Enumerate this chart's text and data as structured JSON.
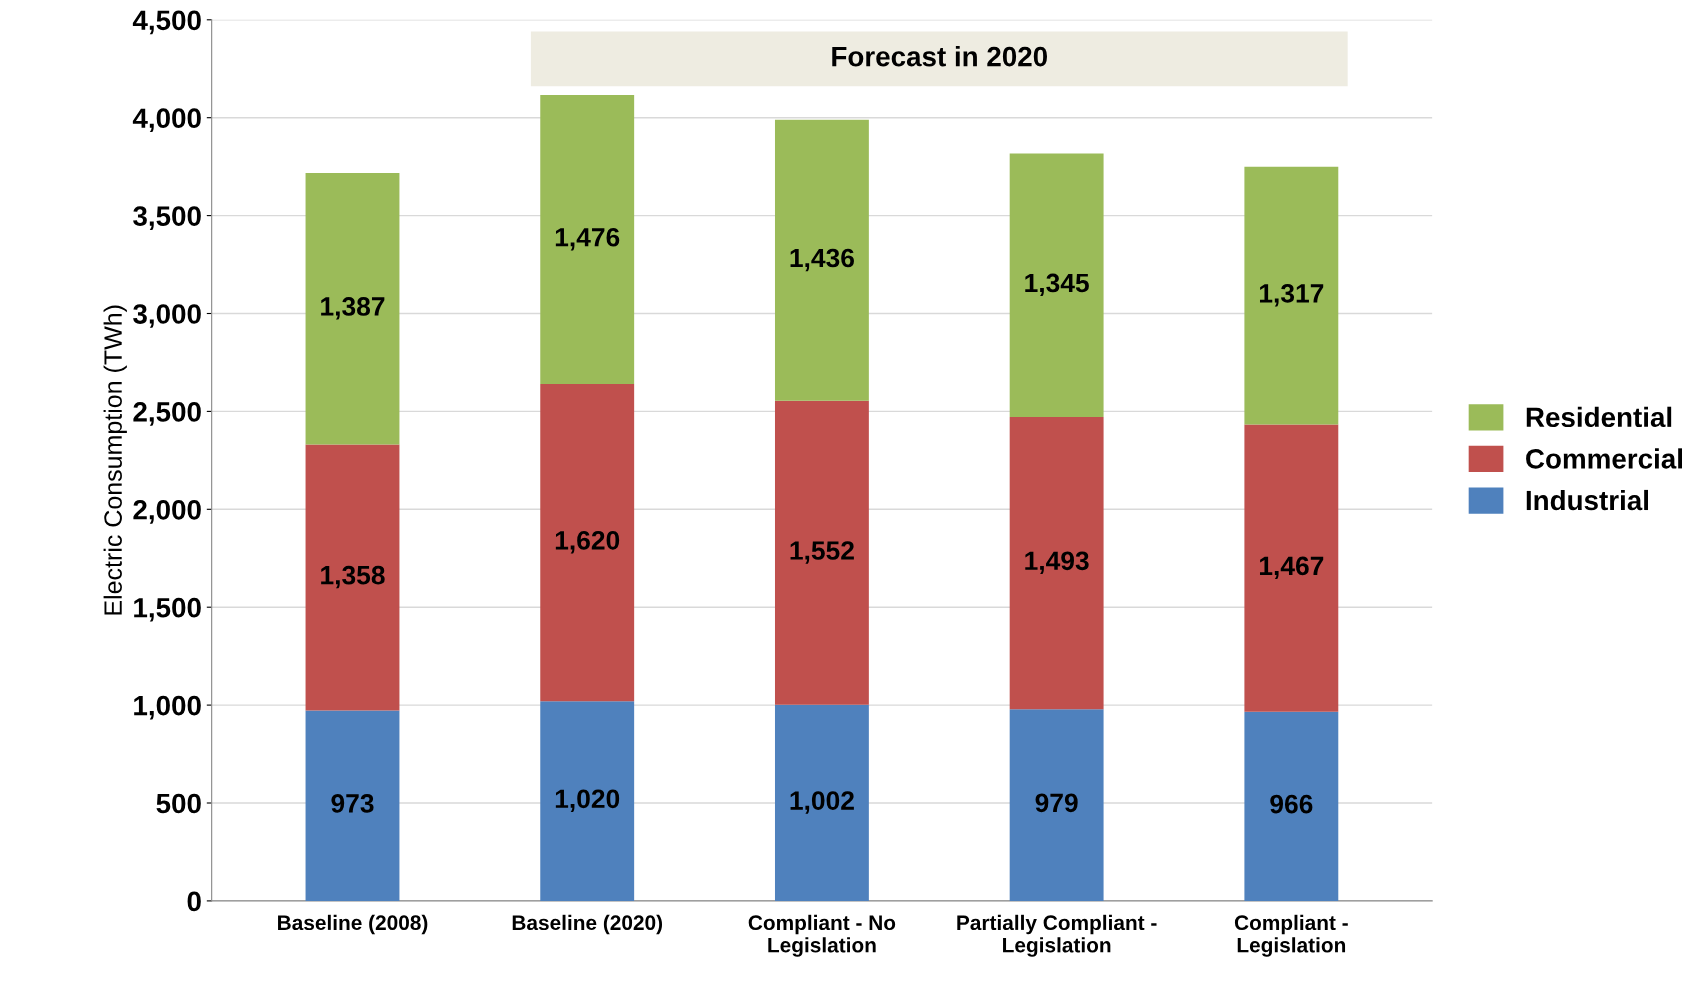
{
  "chart_data": {
    "type": "bar",
    "stacked": true,
    "ylabel": "Electric Consumption (TWh)",
    "categories": [
      "Baseline (2008)",
      "Baseline (2020)",
      "Compliant - No\nLegislation",
      "Partially Compliant -\nLegislation",
      "Compliant -\nLegislation"
    ],
    "series": [
      {
        "name": "Industrial",
        "color": "#4f81bd",
        "values": [
          973,
          1020,
          1002,
          979,
          966
        ],
        "value_labels": [
          "973",
          "1,020",
          "1,002",
          "979",
          "966"
        ]
      },
      {
        "name": "Commercial",
        "color": "#c0504d",
        "values": [
          1358,
          1620,
          1552,
          1493,
          1467
        ],
        "value_labels": [
          "1,358",
          "1,620",
          "1,552",
          "1,493",
          "1,467"
        ]
      },
      {
        "name": "Residential",
        "color": "#9bbb59",
        "values": [
          1387,
          1476,
          1436,
          1345,
          1317
        ],
        "value_labels": [
          "1,387",
          "1,476",
          "1,436",
          "1,345",
          "1,317"
        ]
      }
    ],
    "ylim": [
      0,
      4500
    ],
    "yticks": [
      0,
      500,
      {
        "value": 1000,
        "label": "1,000"
      },
      {
        "value": 1500,
        "label": "1,500"
      },
      {
        "value": 2000,
        "label": "2,000"
      },
      {
        "value": 2500,
        "label": "2,500"
      },
      {
        "value": 3000,
        "label": "3,000"
      },
      {
        "value": 3500,
        "label": "3,500"
      },
      {
        "value": 4000,
        "label": "4,000"
      },
      {
        "value": 4500,
        "label": "4,500"
      }
    ],
    "grid": "y",
    "legend": "right",
    "annotations": [
      "Forecast in 2020"
    ]
  }
}
